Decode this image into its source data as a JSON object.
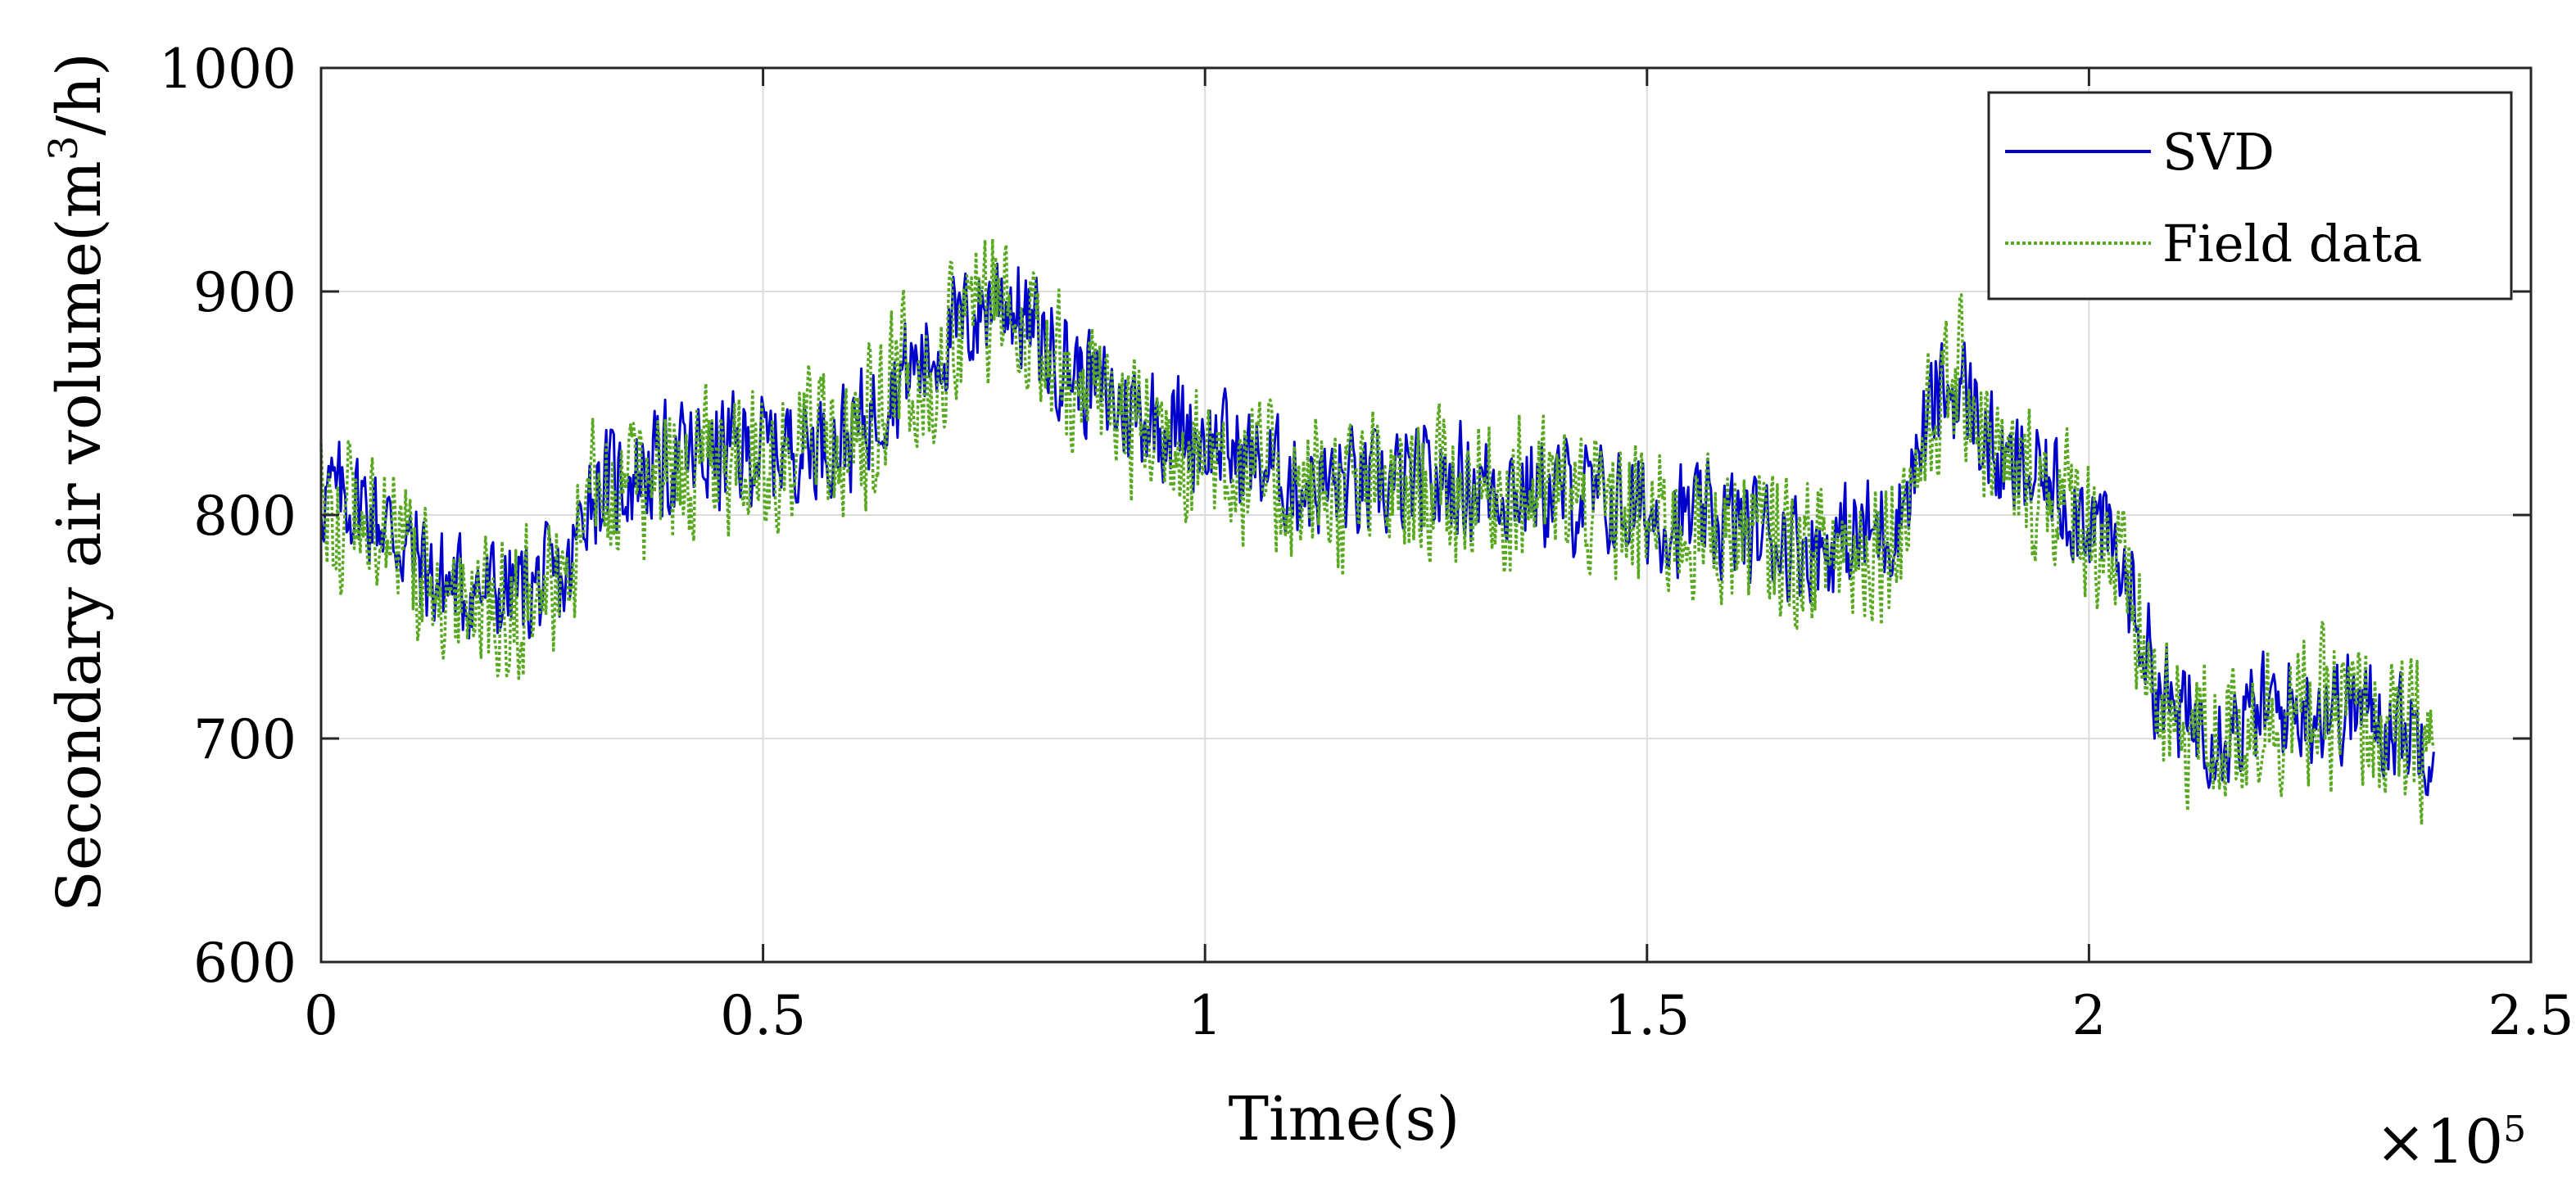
{
  "chart_data": {
    "type": "line",
    "title": "",
    "xlabel": "Time(s)",
    "ylabel_main": "Secondary air volume(m",
    "ylabel_sup": "3",
    "ylabel_tail": "/h)",
    "x_exponent_base": "×10",
    "x_exponent_power": "5",
    "xlim": [
      0,
      2.5
    ],
    "ylim": [
      600,
      1000
    ],
    "x_ticks": [
      0,
      0.5,
      1,
      1.5,
      2,
      2.5
    ],
    "x_tick_labels": [
      "0",
      "0.5",
      "1",
      "1.5",
      "2",
      "2.5"
    ],
    "y_ticks": [
      600,
      700,
      800,
      900,
      1000
    ],
    "y_tick_labels": [
      "600",
      "700",
      "800",
      "900",
      "1000"
    ],
    "grid": true,
    "legend_position": "top-right",
    "trend_x": [
      0,
      0.05,
      0.1,
      0.13,
      0.2,
      0.28,
      0.3,
      0.4,
      0.5,
      0.6,
      0.65,
      0.7,
      0.77,
      0.82,
      0.9,
      1.0,
      1.1,
      1.2,
      1.3,
      1.4,
      1.5,
      1.6,
      1.7,
      1.78,
      1.83,
      1.86,
      1.9,
      1.95,
      2.0,
      2.02,
      2.05,
      2.08,
      2.1,
      2.15,
      2.2,
      2.25,
      2.3,
      2.35,
      2.39
    ],
    "series": [
      {
        "name": "SVD",
        "color": "#0000cc",
        "style": "solid",
        "trend_y": [
          810,
          805,
          785,
          770,
          765,
          770,
          810,
          825,
          830,
          835,
          860,
          875,
          900,
          875,
          850,
          835,
          815,
          812,
          815,
          810,
          800,
          795,
          785,
          795,
          855,
          855,
          820,
          815,
          800,
          790,
          760,
          720,
          710,
          705,
          712,
          715,
          715,
          705,
          700
        ]
      },
      {
        "name": "Field data",
        "color": "#58a820",
        "style": "dotted",
        "trend_y": [
          805,
          800,
          780,
          765,
          760,
          765,
          805,
          820,
          825,
          830,
          860,
          870,
          905,
          870,
          845,
          830,
          810,
          810,
          812,
          808,
          798,
          792,
          782,
          792,
          850,
          860,
          818,
          812,
          796,
          788,
          755,
          710,
          705,
          702,
          710,
          712,
          712,
          700,
          698
        ]
      }
    ]
  }
}
